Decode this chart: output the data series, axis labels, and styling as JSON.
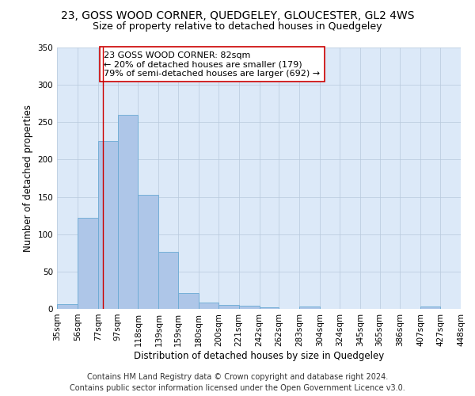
{
  "title": "23, GOSS WOOD CORNER, QUEDGELEY, GLOUCESTER, GL2 4WS",
  "subtitle": "Size of property relative to detached houses in Quedgeley",
  "xlabel": "Distribution of detached houses by size in Quedgeley",
  "ylabel": "Number of detached properties",
  "bin_edges": [
    35,
    56,
    77,
    97,
    118,
    139,
    159,
    180,
    200,
    221,
    242,
    262,
    283,
    304,
    324,
    345,
    365,
    386,
    407,
    427,
    448
  ],
  "bar_heights": [
    6,
    122,
    225,
    260,
    153,
    76,
    21,
    9,
    5,
    4,
    2,
    0,
    3,
    0,
    0,
    0,
    0,
    0,
    3,
    0
  ],
  "bar_color": "#aec6e8",
  "bar_edge_color": "#6aaad4",
  "property_size": 82,
  "vline_color": "#cc0000",
  "annotation_text": "23 GOSS WOOD CORNER: 82sqm\n← 20% of detached houses are smaller (179)\n79% of semi-detached houses are larger (692) →",
  "annotation_box_color": "#ffffff",
  "annotation_box_edge_color": "#cc0000",
  "ylim": [
    0,
    350
  ],
  "yticks": [
    0,
    50,
    100,
    150,
    200,
    250,
    300,
    350
  ],
  "tick_labels": [
    "35sqm",
    "56sqm",
    "77sqm",
    "97sqm",
    "118sqm",
    "139sqm",
    "159sqm",
    "180sqm",
    "200sqm",
    "221sqm",
    "242sqm",
    "262sqm",
    "283sqm",
    "304sqm",
    "324sqm",
    "345sqm",
    "365sqm",
    "386sqm",
    "407sqm",
    "427sqm",
    "448sqm"
  ],
  "footer_line1": "Contains HM Land Registry data © Crown copyright and database right 2024.",
  "footer_line2": "Contains public sector information licensed under the Open Government Licence v3.0.",
  "plot_bg_color": "#dce9f8",
  "title_fontsize": 10,
  "subtitle_fontsize": 9,
  "axis_label_fontsize": 8.5,
  "tick_fontsize": 7.5,
  "annotation_fontsize": 8,
  "footer_fontsize": 7
}
